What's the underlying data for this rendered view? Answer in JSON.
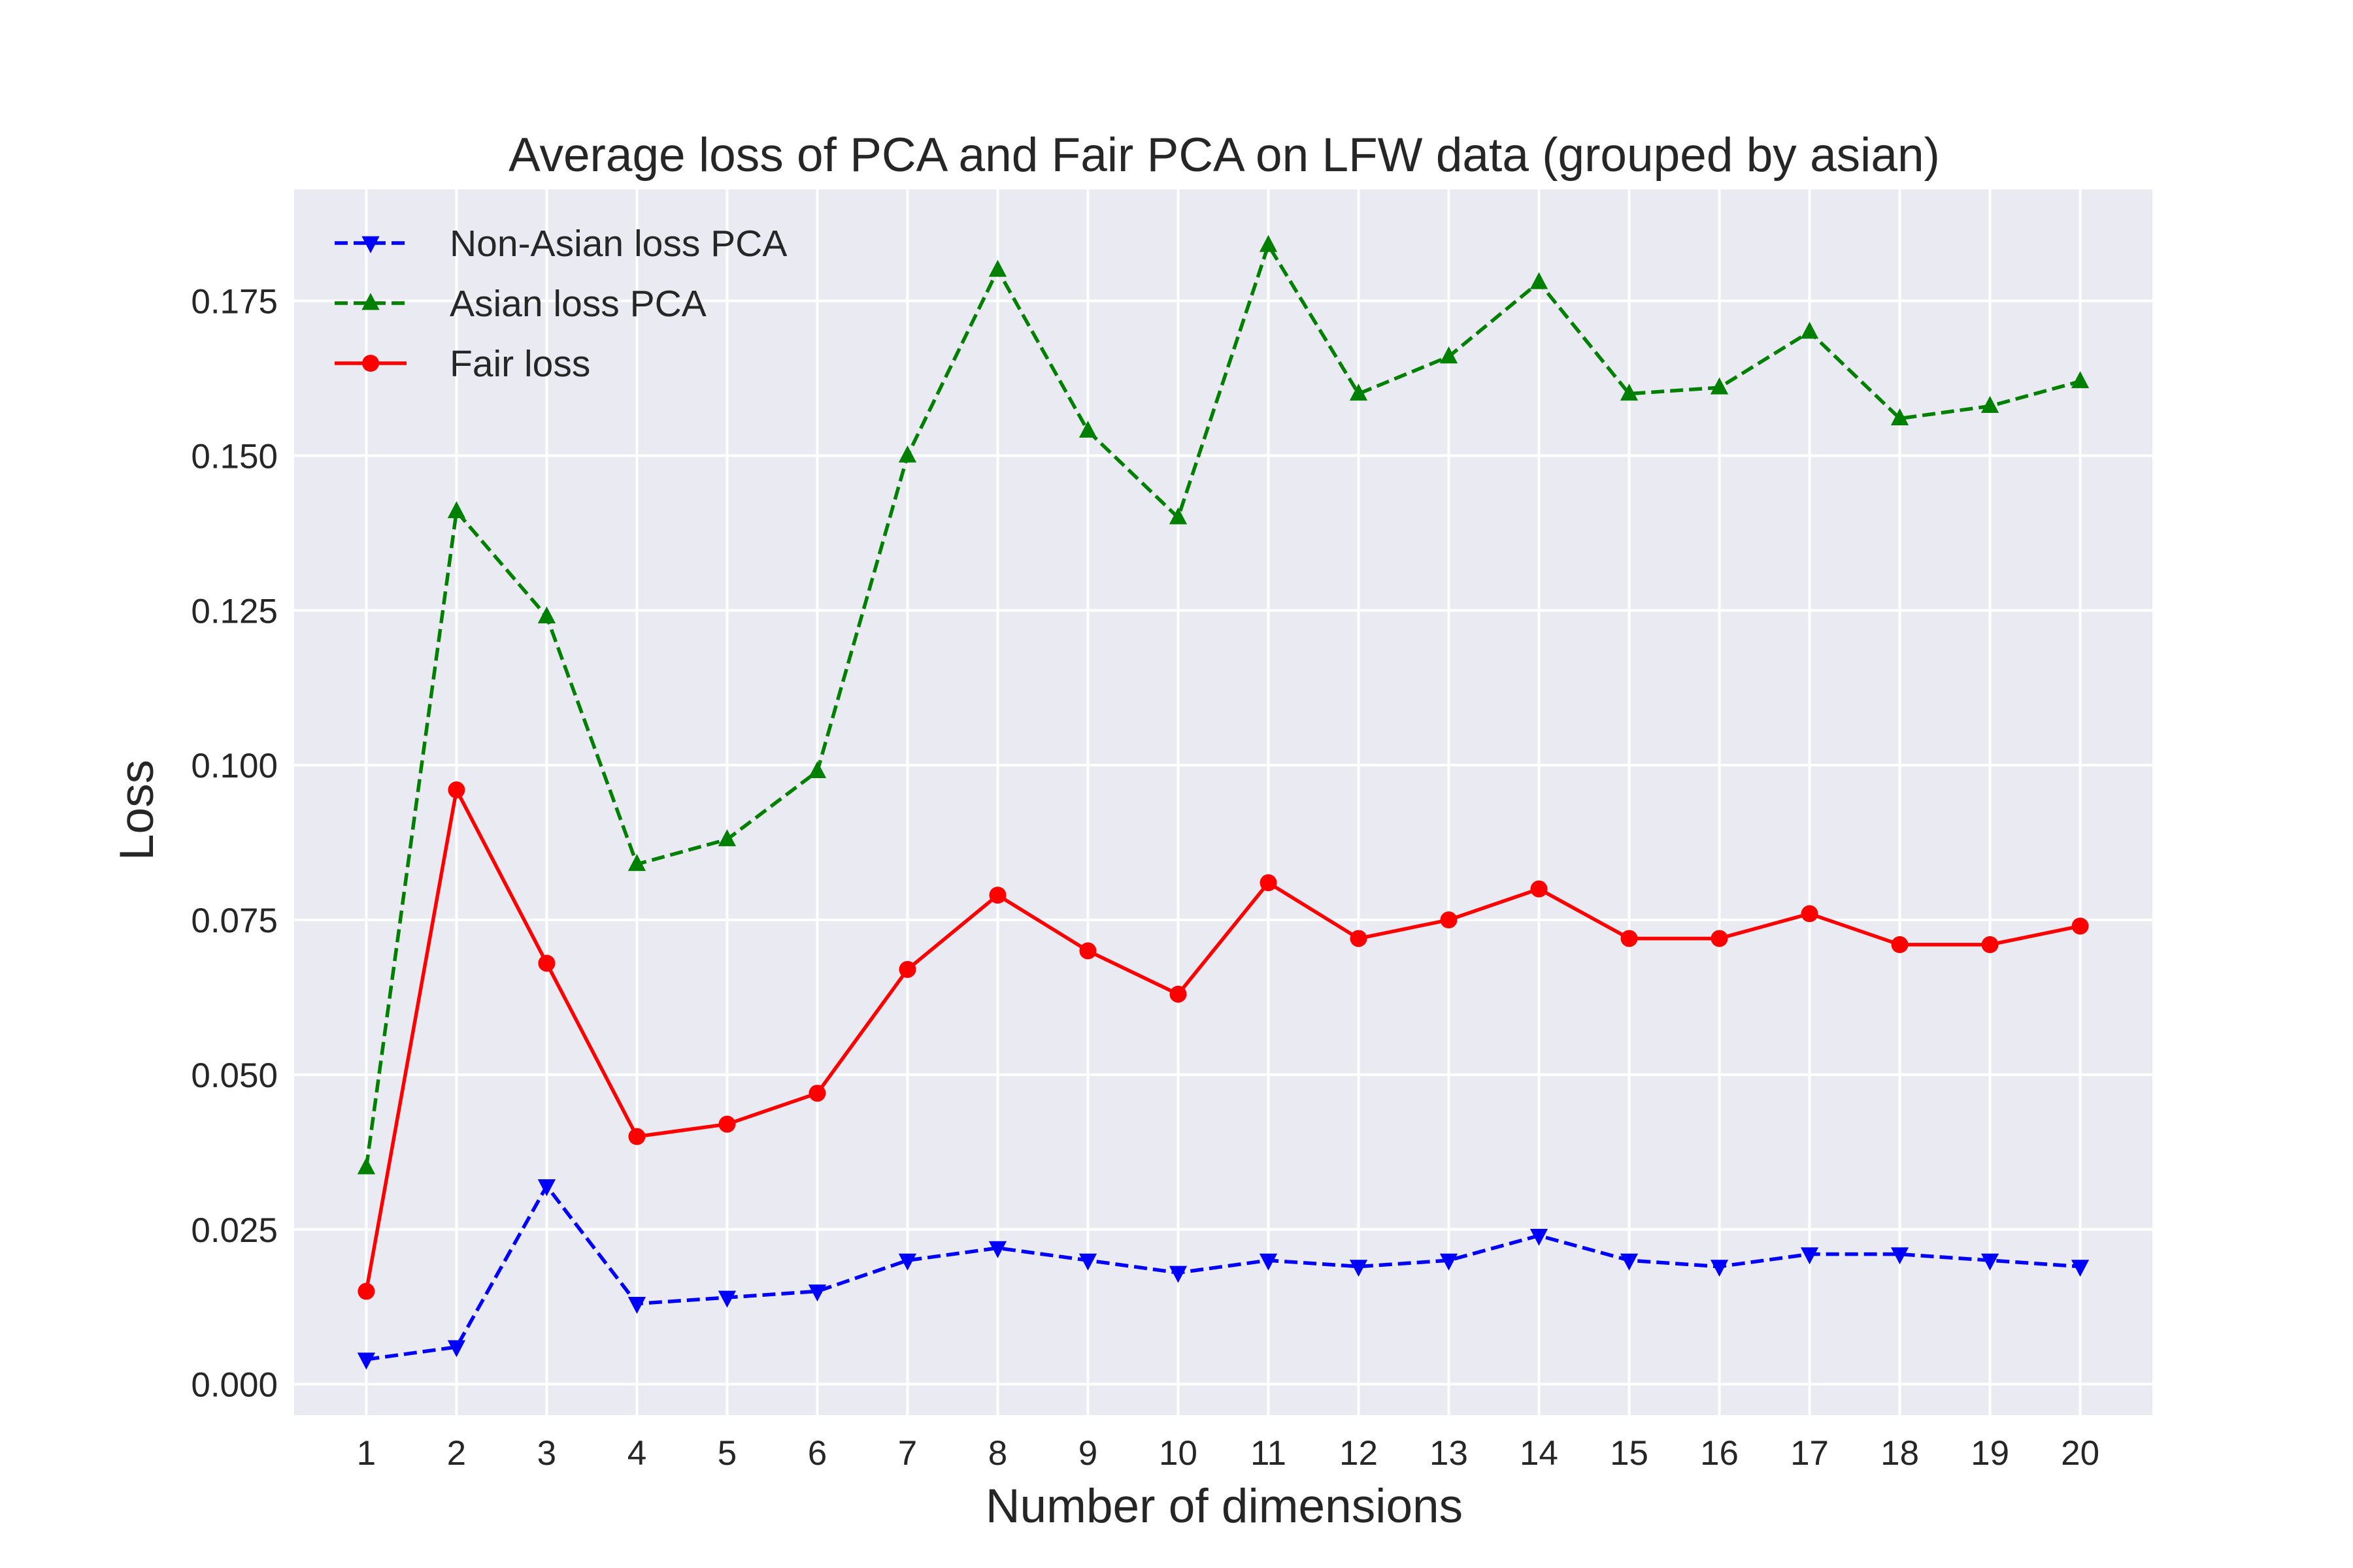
{
  "chart_data": {
    "type": "line",
    "title": "Average loss of PCA and Fair PCA on LFW data (grouped by asian)",
    "xlabel": "Number of dimensions",
    "ylabel": "Loss",
    "x": [
      1,
      2,
      3,
      4,
      5,
      6,
      7,
      8,
      9,
      10,
      11,
      12,
      13,
      14,
      15,
      16,
      17,
      18,
      19,
      20
    ],
    "xlim": [
      0.2,
      20.8
    ],
    "ylim": [
      -0.005,
      0.193
    ],
    "yticks": [
      0.0,
      0.025,
      0.05,
      0.075,
      0.1,
      0.125,
      0.15,
      0.175
    ],
    "ytick_labels": [
      "0.000",
      "0.025",
      "0.050",
      "0.075",
      "0.100",
      "0.125",
      "0.150",
      "0.175"
    ],
    "xtick_labels": [
      "1",
      "2",
      "3",
      "4",
      "5",
      "6",
      "7",
      "8",
      "9",
      "10",
      "11",
      "12",
      "13",
      "14",
      "15",
      "16",
      "17",
      "18",
      "19",
      "20"
    ],
    "grid": true,
    "legend_position": "top-left",
    "background": "#eaeaf2",
    "series": [
      {
        "name": "Non-Asian loss PCA",
        "color": "#0000ff",
        "line_style": "dashed",
        "marker": "triangle-down",
        "values": [
          0.004,
          0.006,
          0.032,
          0.013,
          0.014,
          0.015,
          0.02,
          0.022,
          0.02,
          0.018,
          0.02,
          0.019,
          0.02,
          0.024,
          0.02,
          0.019,
          0.021,
          0.021,
          0.02,
          0.019
        ]
      },
      {
        "name": "Asian loss PCA",
        "color": "#008000",
        "line_style": "dashed",
        "marker": "triangle-up",
        "values": [
          0.035,
          0.141,
          0.124,
          0.084,
          0.088,
          0.099,
          0.15,
          0.18,
          0.154,
          0.14,
          0.184,
          0.16,
          0.166,
          0.178,
          0.16,
          0.161,
          0.17,
          0.156,
          0.158,
          0.162
        ]
      },
      {
        "name": "Fair loss",
        "color": "#ff0000",
        "line_style": "solid",
        "marker": "circle",
        "values": [
          0.015,
          0.096,
          0.068,
          0.04,
          0.042,
          0.047,
          0.067,
          0.079,
          0.07,
          0.063,
          0.081,
          0.072,
          0.075,
          0.08,
          0.072,
          0.072,
          0.076,
          0.071,
          0.071,
          0.074
        ]
      }
    ]
  }
}
